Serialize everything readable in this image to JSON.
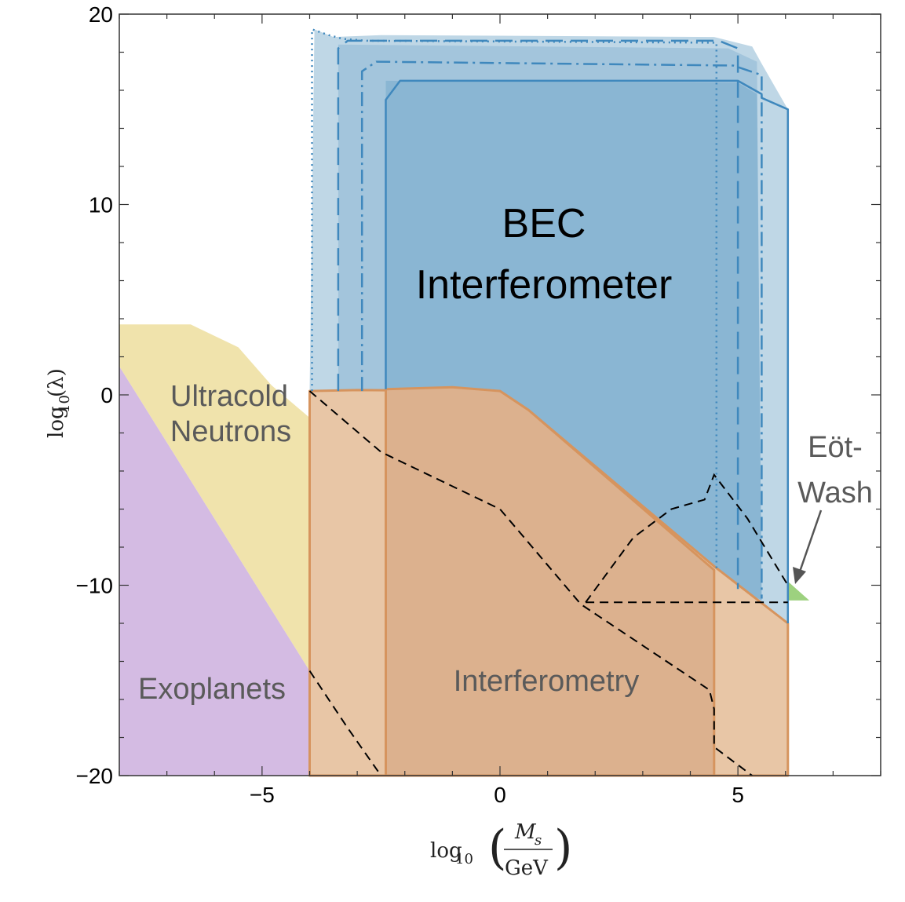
{
  "chart_data": {
    "type": "area",
    "title": "",
    "xlabel": {
      "prefix": "log",
      "sub": "10",
      "num": "M",
      "num_sub": "s",
      "den": "GeV"
    },
    "ylabel": {
      "prefix": "log",
      "sub": "10",
      "arg": "(λ)"
    },
    "xlim": [
      -8,
      8
    ],
    "ylim": [
      -20,
      20
    ],
    "x_ticks": [
      {
        "v": -5,
        "label": "−5"
      },
      {
        "v": 0,
        "label": "0"
      },
      {
        "v": 5,
        "label": "5"
      }
    ],
    "y_ticks": [
      {
        "v": 20,
        "label": "20"
      },
      {
        "v": 10,
        "label": "10"
      },
      {
        "v": 0,
        "label": "0"
      },
      {
        "v": -10,
        "label": "−10"
      },
      {
        "v": -20,
        "label": "−20"
      }
    ],
    "colors": {
      "exoplanets": "#d4bbe3",
      "ultracold": "#f0e3ac",
      "interferometry_light": "#e8c6a6",
      "interferometry_dark": "#dcb18e",
      "interferometry_edge": "#d6945e",
      "bec_light": "#bfd7e6",
      "bec_mid": "#a3c5dc",
      "bec_dark": "#8ab6d3",
      "bec_line": "#3f88bd",
      "eotwash": "#9dd17f"
    },
    "regions": [
      {
        "name": "Exoplanets",
        "points": [
          [
            -8,
            1.5
          ],
          [
            -4,
            -14.5
          ],
          [
            -4,
            -20
          ],
          [
            -8,
            -20
          ]
        ]
      },
      {
        "name": "Ultracold Neutrons",
        "points": [
          [
            -8,
            3.7
          ],
          [
            -6.5,
            3.7
          ],
          [
            -5.5,
            2.5
          ],
          [
            -4.8,
            0.5
          ],
          [
            -4,
            -1.2
          ],
          [
            -4,
            -14.5
          ],
          [
            -8,
            1.5
          ]
        ]
      },
      {
        "name": "Interferometry outer",
        "points": [
          [
            -4,
            0.2
          ],
          [
            -3,
            0.25
          ],
          [
            0,
            0.2
          ],
          [
            0.6,
            -0.8
          ],
          [
            4.5,
            -9
          ],
          [
            6.05,
            -12
          ],
          [
            6.05,
            -20
          ],
          [
            -4,
            -20
          ]
        ]
      },
      {
        "name": "Interferometry inner",
        "points": [
          [
            -2.4,
            0.3
          ],
          [
            -1,
            0.4
          ],
          [
            0,
            0.2
          ],
          [
            0.6,
            -0.8
          ],
          [
            4.5,
            -9.2
          ],
          [
            4.5,
            -20
          ],
          [
            -2.4,
            -20
          ]
        ]
      },
      {
        "name": "BEC outer",
        "points": [
          [
            -3.9,
            19.2
          ],
          [
            -3.5,
            18.8
          ],
          [
            -2.5,
            18.9
          ],
          [
            4.5,
            18.8
          ],
          [
            5.3,
            18.3
          ],
          [
            5.5,
            17.4
          ],
          [
            6.05,
            15
          ],
          [
            6.05,
            -12
          ],
          [
            -4,
            0.2
          ]
        ]
      },
      {
        "name": "BEC mid",
        "points": [
          [
            -3.4,
            18.4
          ],
          [
            4.8,
            18.2
          ],
          [
            5.4,
            17.5
          ],
          [
            5.5,
            -10.8
          ],
          [
            -3.4,
            0.2
          ]
        ]
      },
      {
        "name": "BEC inner",
        "points": [
          [
            -2.4,
            16.5
          ],
          [
            5.0,
            16.4
          ],
          [
            5.4,
            15.8
          ],
          [
            5.5,
            -10.8
          ],
          [
            -2.4,
            0.3
          ]
        ]
      },
      {
        "name": "Eöt-Wash",
        "points": [
          [
            6.05,
            -9.8
          ],
          [
            6.5,
            -10.8
          ],
          [
            6.05,
            -10.8
          ]
        ]
      }
    ],
    "bec_curves": [
      {
        "style": "dotted",
        "points": [
          [
            -3.95,
            0.2
          ],
          [
            -3.95,
            19.2
          ],
          [
            -3.6,
            18.9
          ],
          [
            -3.3,
            18.7
          ],
          [
            -2.8,
            18.6
          ],
          [
            4.55,
            18.5
          ],
          [
            4.55,
            -9.1
          ]
        ]
      },
      {
        "style": "dashed",
        "points": [
          [
            -3.4,
            0.2
          ],
          [
            -3.4,
            18.2
          ],
          [
            -3.2,
            18.6
          ],
          [
            4.6,
            18.6
          ],
          [
            5.0,
            18.2
          ],
          [
            5.0,
            -10.2
          ]
        ]
      },
      {
        "style": "dashdot",
        "points": [
          [
            -2.9,
            0.2
          ],
          [
            -2.9,
            17.0
          ],
          [
            -2.6,
            17.5
          ],
          [
            4.9,
            17.3
          ],
          [
            5.5,
            16.8
          ],
          [
            5.5,
            -10.7
          ]
        ]
      },
      {
        "style": "solid",
        "points": [
          [
            -2.4,
            0.3
          ],
          [
            -2.4,
            15.5
          ],
          [
            -2.1,
            16.5
          ],
          [
            5.0,
            16.5
          ],
          [
            5.5,
            15.8
          ],
          [
            5.5,
            15.6
          ],
          [
            6.05,
            15
          ],
          [
            6.05,
            -12
          ]
        ]
      }
    ],
    "dashed_curves": [
      {
        "points": [
          [
            -4,
            0.2
          ],
          [
            -2.5,
            -3
          ],
          [
            0,
            -6
          ],
          [
            1.7,
            -11
          ],
          [
            3.5,
            -14
          ],
          [
            4.4,
            -15.5
          ],
          [
            4.5,
            -16.5
          ],
          [
            4.5,
            -18.5
          ],
          [
            5.3,
            -20
          ]
        ]
      },
      {
        "points": [
          [
            -4,
            -14.5
          ],
          [
            -3.2,
            -17.5
          ],
          [
            -2.5,
            -20
          ]
        ]
      },
      {
        "points": [
          [
            1.8,
            -10.9
          ],
          [
            2.8,
            -7.5
          ],
          [
            3.6,
            -6
          ],
          [
            4.3,
            -5.5
          ],
          [
            4.5,
            -4.2
          ],
          [
            5.2,
            -6.5
          ],
          [
            6.05,
            -10
          ]
        ]
      },
      {
        "points": [
          [
            1.8,
            -10.9
          ],
          [
            6.05,
            -10.9
          ]
        ]
      }
    ],
    "labels": {
      "exoplanets": "Exoplanets",
      "ultracold_1": "Ultracold",
      "ultracold_2": "Neutrons",
      "interferometry": "Interferometry",
      "bec_1": "BEC",
      "bec_2": "Interferometer",
      "eotwash_1": "Eöt-",
      "eotwash_2": "Wash"
    }
  }
}
